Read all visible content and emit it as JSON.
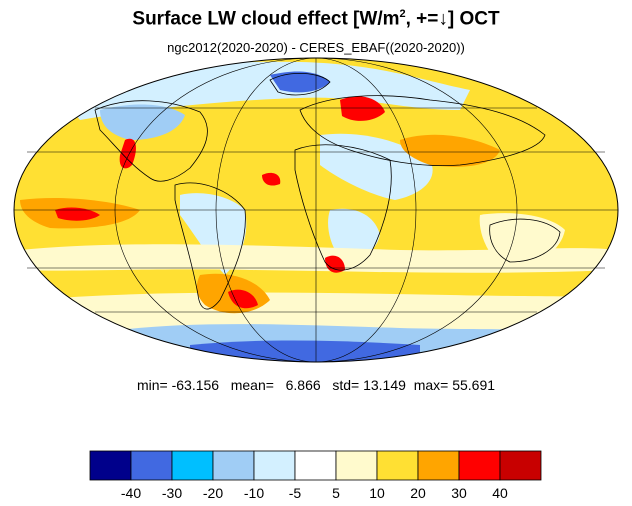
{
  "title": {
    "main": "Surface LW cloud effect [W/m",
    "sup": "2",
    "rest": ", +=↓]  OCT"
  },
  "subtitle": "ngc2012(2020-2020) - CERES_EBAF((2020-2020))",
  "stats": {
    "min_label": "min=",
    "min": "-63.156",
    "mean_label": "mean=",
    "mean": "6.866",
    "std_label": "std=",
    "std": "13.149",
    "max_label": "max=",
    "max": "55.691"
  },
  "colorbar": {
    "colors": [
      "#00008b",
      "#4169e1",
      "#00bfff",
      "#a0cdf5",
      "#d3f0ff",
      "#ffffff",
      "#fffacd",
      "#ffe033",
      "#ffa500",
      "#ff0000",
      "#c80000"
    ],
    "labels": [
      "-40",
      "-30",
      "-20",
      "-10",
      "-5",
      "5",
      "10",
      "20",
      "30",
      "40"
    ]
  },
  "map": {
    "projection": "mollweide",
    "background_color": "#ffe033",
    "gridlines": true
  }
}
